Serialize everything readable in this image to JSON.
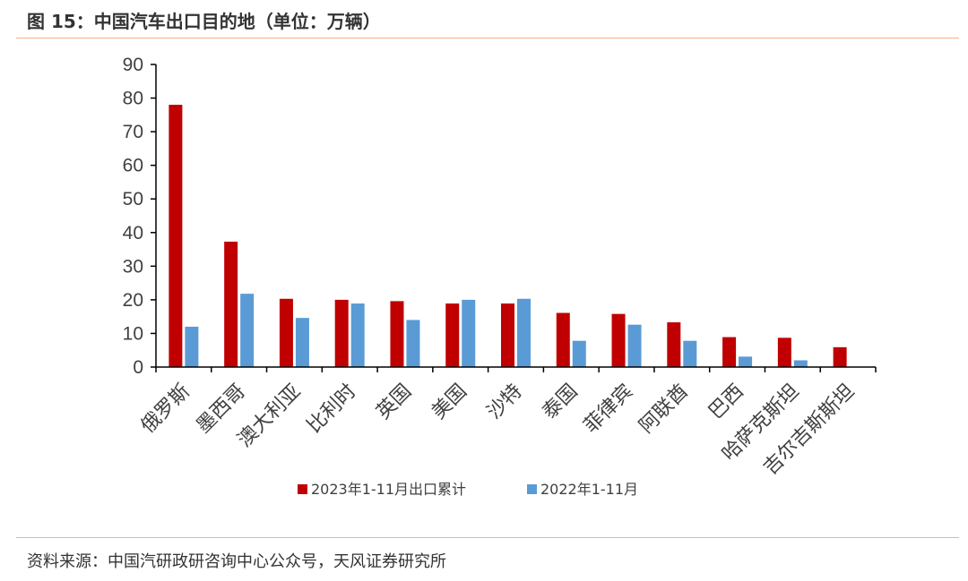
{
  "figure": {
    "title": "图 15：中国汽车出口目的地（单位：万辆）",
    "source": "资料来源：中国汽研政研咨询中心公众号，天风证券研究所"
  },
  "chart_data": {
    "type": "bar",
    "title": "",
    "xlabel": "",
    "ylabel": "",
    "ylim": [
      0,
      90
    ],
    "yticks": [
      0,
      10,
      20,
      30,
      40,
      50,
      60,
      70,
      80,
      90
    ],
    "grid": false,
    "legend_position": "bottom",
    "categories": [
      "俄罗斯",
      "墨西哥",
      "澳大利亚",
      "比利时",
      "英国",
      "美国",
      "沙特",
      "泰国",
      "菲律宾",
      "阿联酋",
      "巴西",
      "哈萨克斯坦",
      "吉尔吉斯斯坦"
    ],
    "series": [
      {
        "name": "2023年1-11月出口累计",
        "color": "#C00000",
        "values": [
          78.0,
          37.3,
          20.3,
          20.0,
          19.6,
          18.9,
          18.9,
          16.1,
          15.8,
          13.3,
          8.9,
          8.7,
          5.9
        ]
      },
      {
        "name": "2022年1-11月",
        "color": "#5B9BD5",
        "values": [
          12.0,
          21.8,
          14.6,
          18.9,
          14.0,
          20.0,
          20.3,
          7.8,
          12.6,
          7.8,
          3.1,
          2.0,
          null
        ]
      }
    ]
  }
}
